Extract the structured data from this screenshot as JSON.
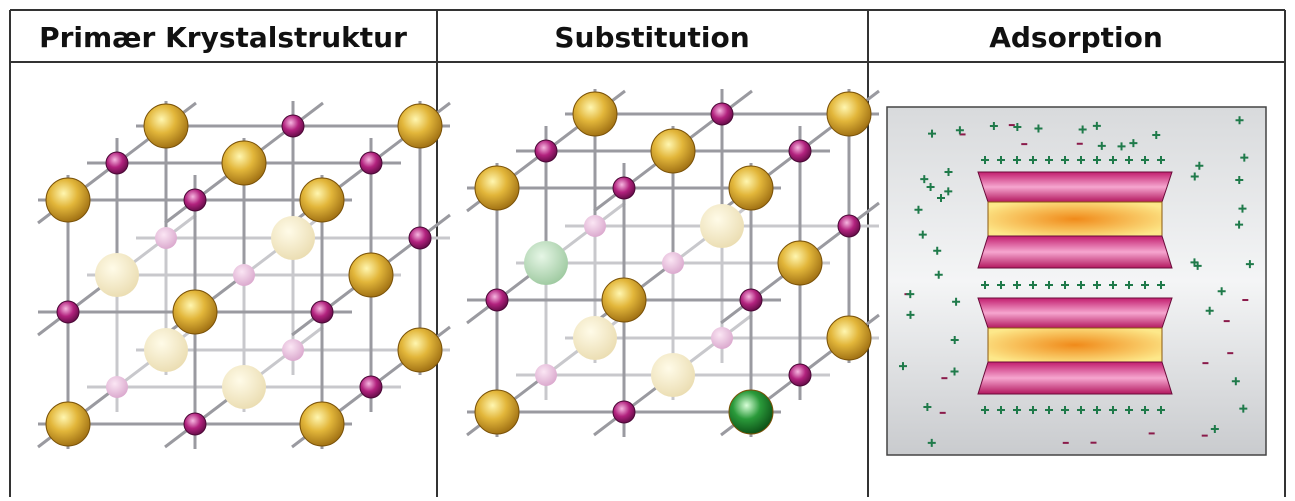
{
  "header": {
    "columns": [
      "Primær Krystalstruktur",
      "Substitution",
      "Adsorption"
    ]
  }
}
